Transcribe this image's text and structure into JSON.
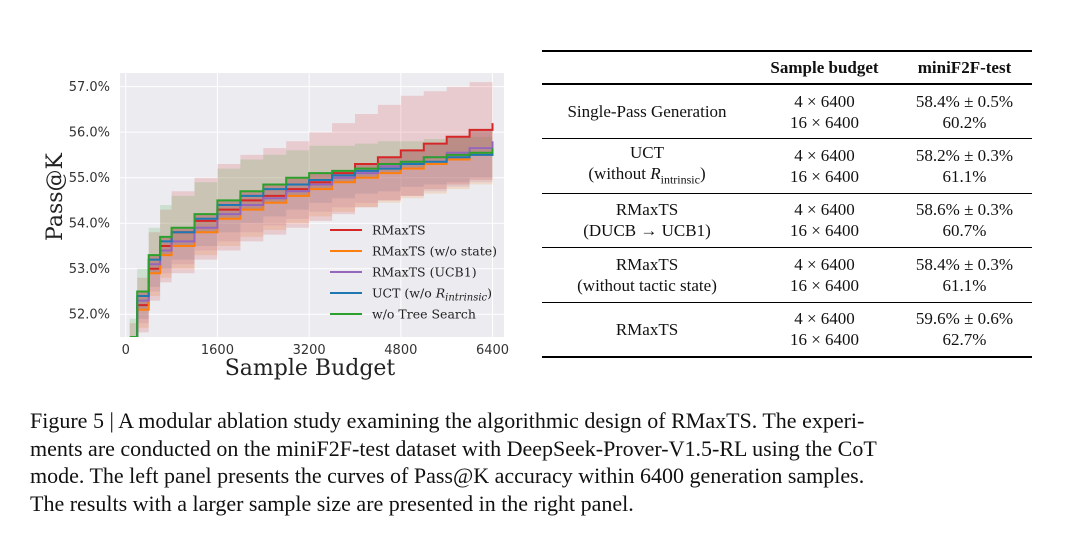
{
  "chart_data": {
    "type": "line",
    "xlabel": "Sample Budget",
    "ylabel": "Pass@K",
    "xlim": [
      -100,
      6600
    ],
    "ylim": [
      51.5,
      57.3
    ],
    "xticks": [
      "0",
      "1600",
      "3200",
      "4800",
      "6400"
    ],
    "yticks": [
      "52.0%",
      "53.0%",
      "54.0%",
      "55.0%",
      "56.0%",
      "57.0%"
    ],
    "legend_position": "lower-right",
    "grid": true,
    "series": [
      {
        "name": "RMaxTS",
        "color": "#d62728",
        "x": [
          70,
          200,
          400,
          600,
          800,
          1200,
          1600,
          2000,
          2400,
          2800,
          3200,
          3600,
          4000,
          4400,
          4800,
          5200,
          5600,
          6000,
          6400
        ],
        "y": [
          51.3,
          52.2,
          53.0,
          53.5,
          53.8,
          54.05,
          54.3,
          54.5,
          54.6,
          54.75,
          54.9,
          55.1,
          55.3,
          55.45,
          55.6,
          55.75,
          55.9,
          56.05,
          56.2
        ]
      },
      {
        "name": "RMaxTS (w/o state)",
        "color": "#ff7f0e",
        "x": [
          70,
          200,
          400,
          600,
          800,
          1200,
          1600,
          2000,
          2400,
          2800,
          3200,
          3600,
          4000,
          4400,
          4800,
          5200,
          5600,
          6000,
          6400
        ],
        "y": [
          51.3,
          52.1,
          52.9,
          53.3,
          53.5,
          53.8,
          54.1,
          54.3,
          54.45,
          54.6,
          54.75,
          54.9,
          55.0,
          55.1,
          55.2,
          55.3,
          55.4,
          55.5,
          55.6
        ]
      },
      {
        "name": "RMaxTS (UCB1)",
        "color": "#9467bd",
        "x": [
          70,
          200,
          400,
          600,
          800,
          1200,
          1600,
          2000,
          2400,
          2800,
          3200,
          3600,
          4000,
          4400,
          4800,
          5200,
          5600,
          6000,
          6400
        ],
        "y": [
          51.4,
          52.3,
          53.1,
          53.4,
          53.6,
          53.9,
          54.2,
          54.4,
          54.55,
          54.7,
          54.85,
          55.0,
          55.1,
          55.25,
          55.35,
          55.45,
          55.55,
          55.65,
          55.8
        ]
      },
      {
        "name": "UCT (w/o R_intrinsic)",
        "color": "#1f77b4",
        "x": [
          70,
          200,
          400,
          600,
          800,
          1200,
          1600,
          2000,
          2400,
          2800,
          3200,
          3600,
          4000,
          4400,
          4800,
          5200,
          5600,
          6000,
          6400
        ],
        "y": [
          51.4,
          52.4,
          53.2,
          53.6,
          53.8,
          54.1,
          54.4,
          54.6,
          54.75,
          54.85,
          54.95,
          55.05,
          55.15,
          55.2,
          55.3,
          55.35,
          55.45,
          55.5,
          55.6
        ]
      },
      {
        "name": "w/o Tree Search",
        "color": "#2ca02c",
        "x": [
          70,
          200,
          400,
          600,
          800,
          1200,
          1600,
          2000,
          2400,
          2800,
          3200,
          3600,
          4000,
          4400,
          4800,
          5200,
          5600,
          6000,
          6400
        ],
        "y": [
          51.5,
          52.5,
          53.3,
          53.7,
          53.9,
          54.2,
          54.5,
          54.7,
          54.85,
          55.0,
          55.1,
          55.15,
          55.2,
          55.3,
          55.35,
          55.45,
          55.5,
          55.55,
          55.65
        ]
      }
    ],
    "uncertainty_bands": [
      {
        "color": "#d62728",
        "upper": [
          51.8,
          52.8,
          53.8,
          54.3,
          54.7,
          55.0,
          55.3,
          55.5,
          55.65,
          55.8,
          56.0,
          56.2,
          56.4,
          56.6,
          56.8,
          56.9,
          57.0,
          57.1,
          57.15
        ]
      },
      {
        "color": "#2ca02c",
        "upper": [
          51.9,
          53.0,
          53.9,
          54.4,
          54.6,
          54.9,
          55.2,
          55.4,
          55.5,
          55.6,
          55.7,
          55.7,
          55.75,
          55.8,
          55.8,
          55.85,
          55.9,
          55.9,
          55.95
        ]
      },
      {
        "color": "#1f77b4",
        "lower": [
          51.0,
          51.9,
          52.6,
          53.0,
          53.2,
          53.5,
          53.8,
          54.0,
          54.15,
          54.3,
          54.45,
          54.55,
          54.65,
          54.7,
          54.8,
          54.85,
          54.9,
          55.0,
          55.05
        ]
      },
      {
        "color": "#9467bd",
        "lower": [
          51.0,
          51.8,
          52.5,
          52.9,
          53.1,
          53.4,
          53.6,
          53.8,
          53.95,
          54.1,
          54.25,
          54.35,
          54.45,
          54.5,
          54.6,
          54.7,
          54.8,
          54.9,
          55.0
        ]
      },
      {
        "color": "#ff7f0e",
        "lower": [
          50.9,
          51.7,
          52.4,
          52.8,
          53.0,
          53.3,
          53.5,
          53.7,
          53.85,
          54.0,
          54.15,
          54.25,
          54.35,
          54.45,
          54.55,
          54.65,
          54.75,
          54.85,
          54.95
        ]
      },
      {
        "color": "#d62728",
        "lower": [
          50.9,
          51.6,
          52.3,
          52.7,
          52.9,
          53.2,
          53.4,
          53.6,
          53.75,
          53.9,
          54.05,
          54.2,
          54.35,
          54.5,
          54.6,
          54.75,
          54.85,
          54.95,
          55.05
        ]
      }
    ]
  },
  "table": {
    "headers": [
      "",
      "Sample budget",
      "miniF2F-test"
    ],
    "rows": [
      {
        "method": [
          "Single-Pass Generation"
        ],
        "budgets": [
          "4 × 6400",
          "16 × 6400"
        ],
        "scores": [
          "58.4% ± 0.5%",
          "60.2%"
        ]
      },
      {
        "method": [
          "UCT",
          "(without R",
          "intrinsic",
          ")"
        ],
        "budgets": [
          "4 × 6400",
          "16 × 6400"
        ],
        "scores": [
          "58.2% ± 0.3%",
          "61.1%"
        ]
      },
      {
        "method": [
          "RMaxTS",
          "(DUCB → UCB1)"
        ],
        "budgets": [
          "4 × 6400",
          "16 × 6400"
        ],
        "scores": [
          "58.6% ± 0.3%",
          "60.7%"
        ]
      },
      {
        "method": [
          "RMaxTS",
          "(without tactic state)"
        ],
        "budgets": [
          "4 × 6400",
          "16 × 6400"
        ],
        "scores": [
          "58.4% ± 0.3%",
          "61.1%"
        ]
      },
      {
        "method": [
          "RMaxTS"
        ],
        "budgets": [
          "4 × 6400",
          "16 × 6400"
        ],
        "scores": [
          "59.6% ± 0.6%",
          "62.7%"
        ]
      }
    ]
  },
  "caption": {
    "lines": [
      "Figure 5 | A modular ablation study examining the algorithmic design of RMaxTS. The experi-",
      "ments are conducted on the miniF2F-test dataset with DeepSeek-Prover-V1.5-RL using the CoT",
      "mode. The left panel presents the curves of Pass@K accuracy within 6400 generation samples.",
      "The results with a larger sample size are presented in the right panel."
    ]
  }
}
